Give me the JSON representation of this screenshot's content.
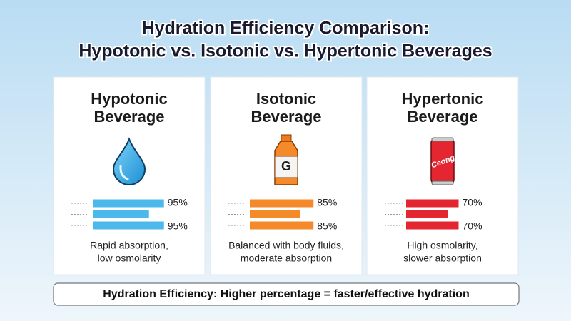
{
  "title_lines": [
    "Hydration Efficiency Comparison:",
    "Hypotonic vs. Isotonic vs. Hypertonic Beverages"
  ],
  "cards": [
    {
      "heading": [
        "Hypotonic",
        "Beverage"
      ],
      "icon": "drop",
      "color": "#4db8ea",
      "bars": [
        {
          "value": 95,
          "label": "95%"
        },
        {
          "value": 75
        },
        {
          "value": 95,
          "label": "95%"
        }
      ],
      "description": [
        "Rapid absorption,",
        "low osmolarity"
      ]
    },
    {
      "heading": [
        "Isotonic",
        "Beverage"
      ],
      "icon": "bottle",
      "icon_text": "G",
      "color": "#f58a2a",
      "bars": [
        {
          "value": 85,
          "label": "85%"
        },
        {
          "value": 67
        },
        {
          "value": 85,
          "label": "85%"
        }
      ],
      "description": [
        "Balanced with body fluids,",
        "moderate absorption"
      ]
    },
    {
      "heading": [
        "Hypertonic",
        "Beverage"
      ],
      "icon": "can",
      "icon_text": "Ceong",
      "color": "#e42631",
      "bars": [
        {
          "value": 70,
          "label": "70%"
        },
        {
          "value": 56
        },
        {
          "value": 70,
          "label": "70%"
        }
      ],
      "description": [
        "High osmolarity,",
        "slower absorption"
      ]
    }
  ],
  "footer": "Hydration Efficiency: Higher percentage = faster/effective hydration"
}
